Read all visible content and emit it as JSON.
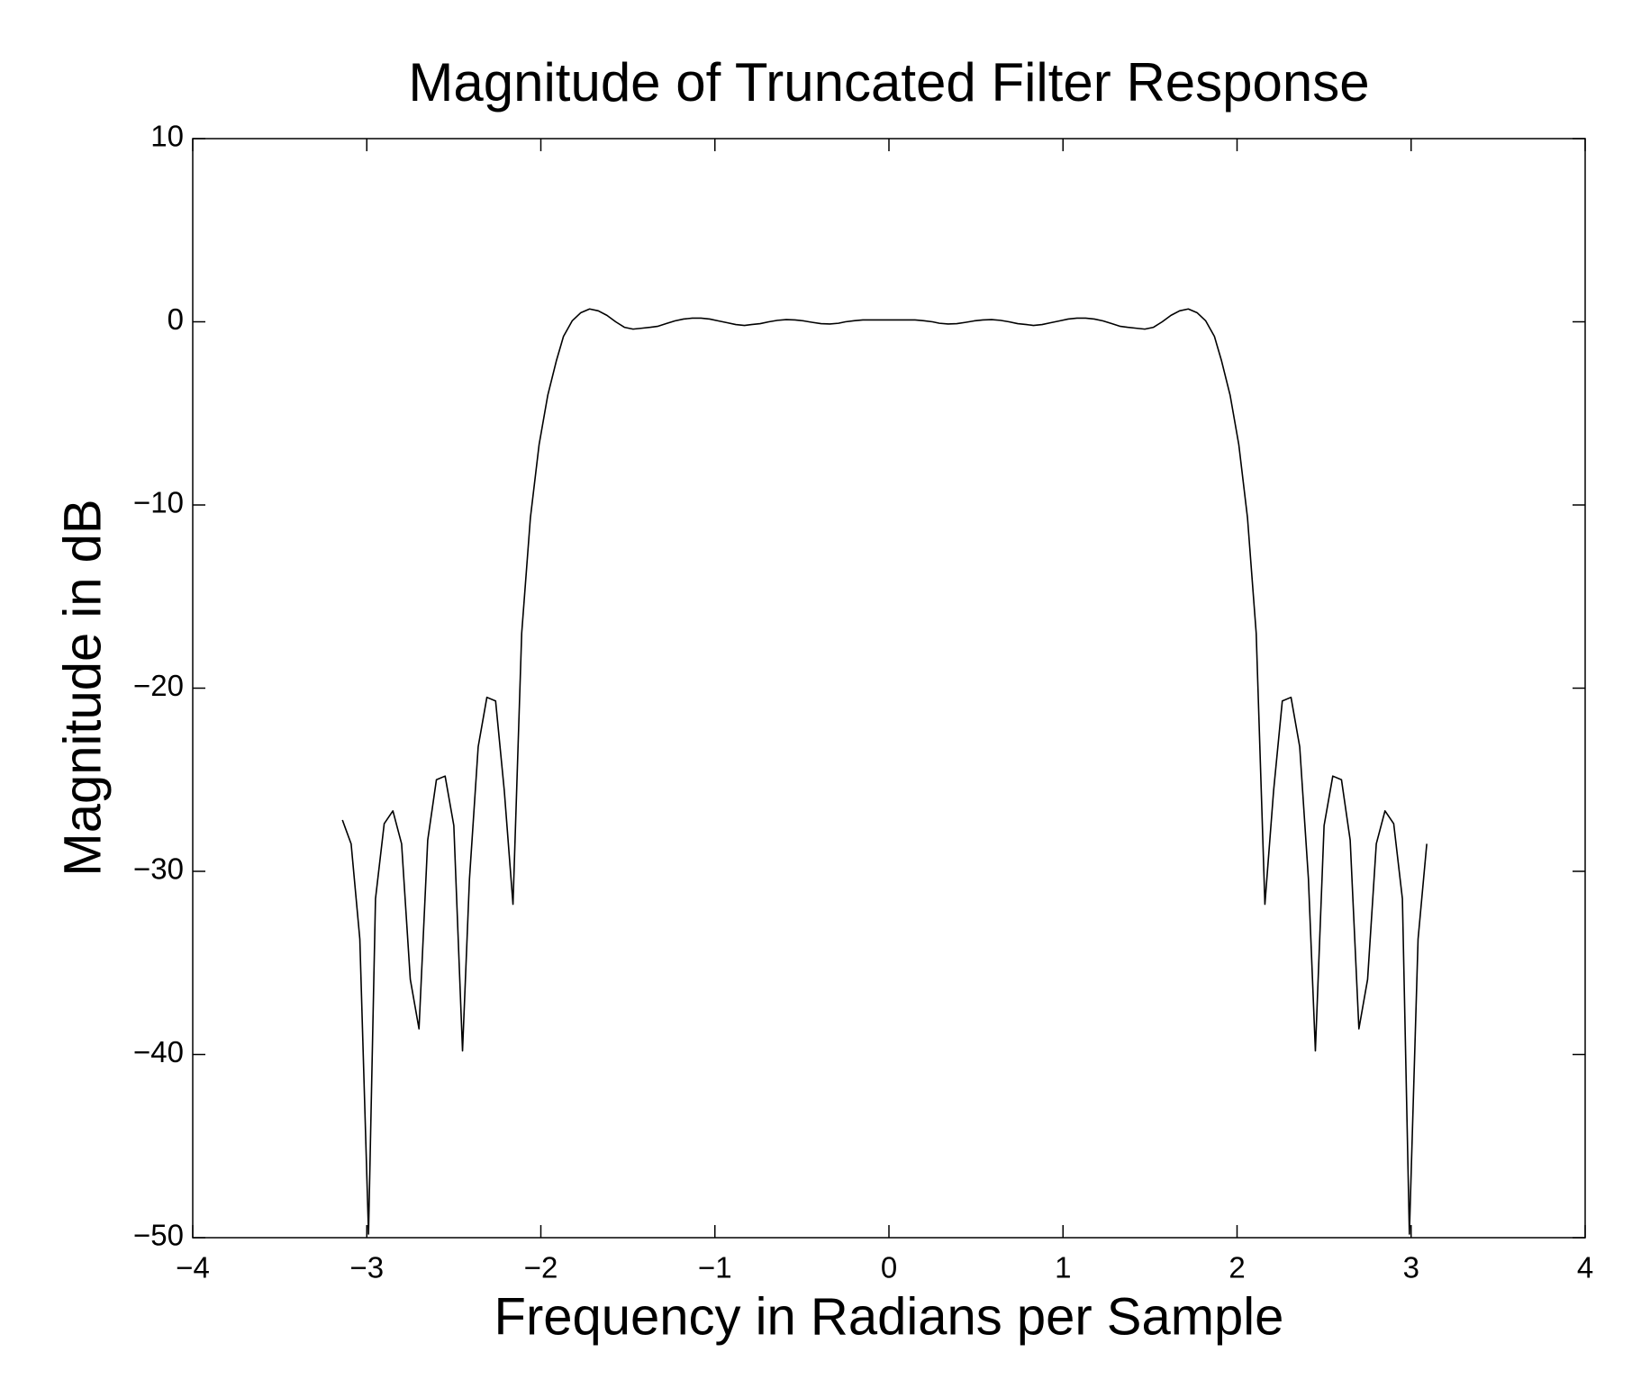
{
  "chart_data": {
    "type": "line",
    "title": "Magnitude of Truncated Filter Response",
    "x_label": "Frequency in Radians per Sample",
    "y_label": "Magnitude in dB",
    "color": "#000000",
    "xlim": [
      -4,
      4
    ],
    "ylim": [
      -50,
      10
    ],
    "xticks": [
      {
        "value": -4,
        "label": "−4"
      },
      {
        "value": -3,
        "label": "−3"
      },
      {
        "value": -2,
        "label": "−2"
      },
      {
        "value": -1,
        "label": "−1"
      },
      0,
      1,
      2,
      3,
      4
    ],
    "yticks": [
      {
        "value": -50,
        "label": "−50"
      },
      {
        "value": -40,
        "label": "−40"
      },
      {
        "value": -30,
        "label": "−30"
      },
      {
        "value": -20,
        "label": "−20"
      },
      {
        "value": -10,
        "label": "−10"
      },
      0,
      10
    ],
    "x": [
      -3.14,
      -3.09,
      -3.04,
      -2.99,
      -2.95,
      -2.9,
      -2.85,
      -2.8,
      -2.75,
      -2.7,
      -2.65,
      -2.6,
      -2.55,
      -2.5,
      -2.45,
      -2.41,
      -2.36,
      -2.31,
      -2.26,
      -2.21,
      -2.16,
      -2.11,
      -2.06,
      -2.01,
      -1.96,
      -1.91,
      -1.87,
      -1.82,
      -1.77,
      -1.72,
      -1.67,
      -1.62,
      -1.57,
      -1.52,
      -1.47,
      -1.42,
      -1.37,
      -1.33,
      -1.28,
      -1.23,
      -1.18,
      -1.13,
      -1.08,
      -1.03,
      -0.98,
      -0.93,
      -0.88,
      -0.83,
      -0.79,
      -0.74,
      -0.69,
      -0.64,
      -0.59,
      -0.54,
      -0.49,
      -0.44,
      -0.39,
      -0.34,
      -0.29,
      -0.25,
      -0.2,
      -0.15,
      -0.1,
      -0.05,
      0,
      0.05,
      0.1,
      0.15,
      0.2,
      0.25,
      0.29,
      0.34,
      0.39,
      0.44,
      0.49,
      0.54,
      0.59,
      0.64,
      0.69,
      0.74,
      0.79,
      0.83,
      0.88,
      0.93,
      0.98,
      1.03,
      1.08,
      1.13,
      1.18,
      1.23,
      1.28,
      1.33,
      1.37,
      1.42,
      1.47,
      1.52,
      1.57,
      1.62,
      1.67,
      1.72,
      1.77,
      1.82,
      1.87,
      1.91,
      1.96,
      2.01,
      2.06,
      2.11,
      2.16,
      2.21,
      2.26,
      2.31,
      2.36,
      2.41,
      2.45,
      2.5,
      2.55,
      2.6,
      2.65,
      2.7,
      2.75,
      2.8,
      2.85,
      2.9,
      2.95,
      2.99,
      3.04,
      3.09
    ],
    "values": [
      -27.2,
      -28.5,
      -33.7,
      -49.8,
      -31.5,
      -27.4,
      -26.7,
      -28.5,
      -35.9,
      -38.6,
      -28.3,
      -25.0,
      -24.8,
      -27.5,
      -39.8,
      -30.4,
      -23.2,
      -20.5,
      -20.7,
      -25.6,
      -31.8,
      -17.0,
      -10.7,
      -6.7,
      -4.0,
      -2.1,
      -0.8,
      0.05,
      0.5,
      0.7,
      0.6,
      0.35,
      0,
      -0.3,
      -0.4,
      -0.35,
      -0.3,
      -0.25,
      -0.1,
      0.05,
      0.15,
      0.2,
      0.2,
      0.15,
      0.05,
      -0.05,
      -0.15,
      -0.2,
      -0.15,
      -0.1,
      0,
      0.08,
      0.12,
      0.1,
      0.05,
      -0.03,
      -0.1,
      -0.12,
      -0.08,
      0,
      0.06,
      0.1,
      0.1,
      0.1,
      0.1,
      0.1,
      0.1,
      0.1,
      0.06,
      0,
      -0.08,
      -0.12,
      -0.1,
      -0.03,
      0.05,
      0.1,
      0.12,
      0.08,
      0,
      -0.1,
      -0.15,
      -0.2,
      -0.15,
      -0.05,
      0.05,
      0.15,
      0.2,
      0.2,
      0.15,
      0.05,
      -0.1,
      -0.25,
      -0.3,
      -0.35,
      -0.4,
      -0.3,
      0,
      0.35,
      0.6,
      0.7,
      0.5,
      0.05,
      -0.8,
      -2.1,
      -4.0,
      -6.7,
      -10.7,
      -17.0,
      -31.8,
      -25.6,
      -20.7,
      -20.5,
      -23.2,
      -30.4,
      -39.8,
      -27.5,
      -24.8,
      -25.0,
      -28.3,
      -38.6,
      -35.9,
      -28.5,
      -26.7,
      -27.4,
      -31.5,
      -49.8,
      -33.7,
      -28.5
    ]
  }
}
